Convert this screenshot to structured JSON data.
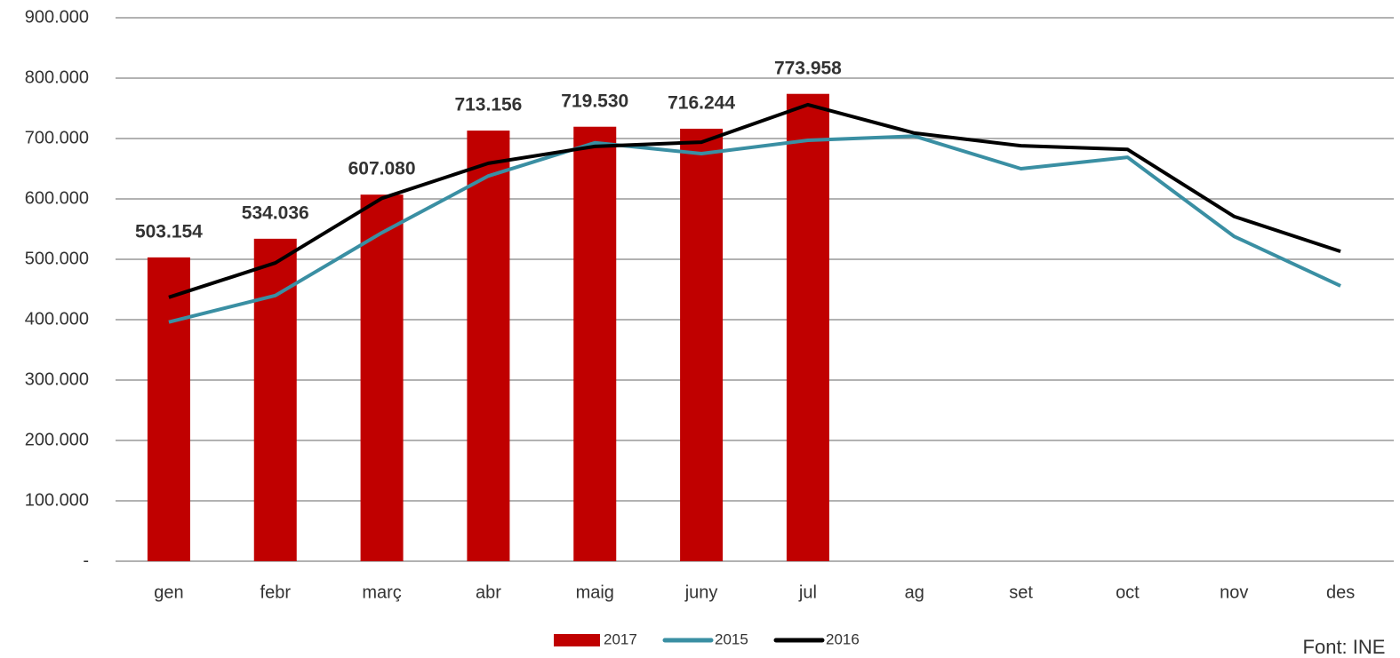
{
  "chart_data": {
    "type": "combo",
    "categories": [
      "gen",
      "febr",
      "març",
      "abr",
      "maig",
      "juny",
      "jul",
      "ag",
      "set",
      "oct",
      "nov",
      "des"
    ],
    "series": [
      {
        "name": "2017",
        "type": "bar",
        "color": "#c00000",
        "values": [
          503154,
          534036,
          607080,
          713156,
          719530,
          716244,
          773958,
          null,
          null,
          null,
          null,
          null
        ],
        "value_labels": [
          "503.154",
          "534.036",
          "607.080",
          "713.156",
          "719.530",
          "716.244",
          "773.958",
          null,
          null,
          null,
          null,
          null
        ]
      },
      {
        "name": "2015",
        "type": "line",
        "color": "#3a8fa3",
        "values": [
          396000,
          440000,
          544000,
          638000,
          693000,
          675000,
          697000,
          704000,
          650000,
          669000,
          538000,
          456000
        ]
      },
      {
        "name": "2016",
        "type": "line",
        "color": "#000000",
        "values": [
          437000,
          494000,
          601000,
          659000,
          687000,
          694000,
          756000,
          709000,
          688000,
          682000,
          571000,
          513000
        ]
      }
    ],
    "ylim": [
      0,
      900000
    ],
    "yticks": [
      {
        "value": 0,
        "label": "-"
      },
      {
        "value": 100000,
        "label": "100.000"
      },
      {
        "value": 200000,
        "label": "200.000"
      },
      {
        "value": 300000,
        "label": "300.000"
      },
      {
        "value": 400000,
        "label": "400.000"
      },
      {
        "value": 500000,
        "label": "500.000"
      },
      {
        "value": 600000,
        "label": "600.000"
      },
      {
        "value": 700000,
        "label": "700.000"
      },
      {
        "value": 800000,
        "label": "800.000"
      },
      {
        "value": 900000,
        "label": "900.000"
      }
    ],
    "grid": true,
    "legend": "bottom",
    "annotation": "Font: INE"
  }
}
